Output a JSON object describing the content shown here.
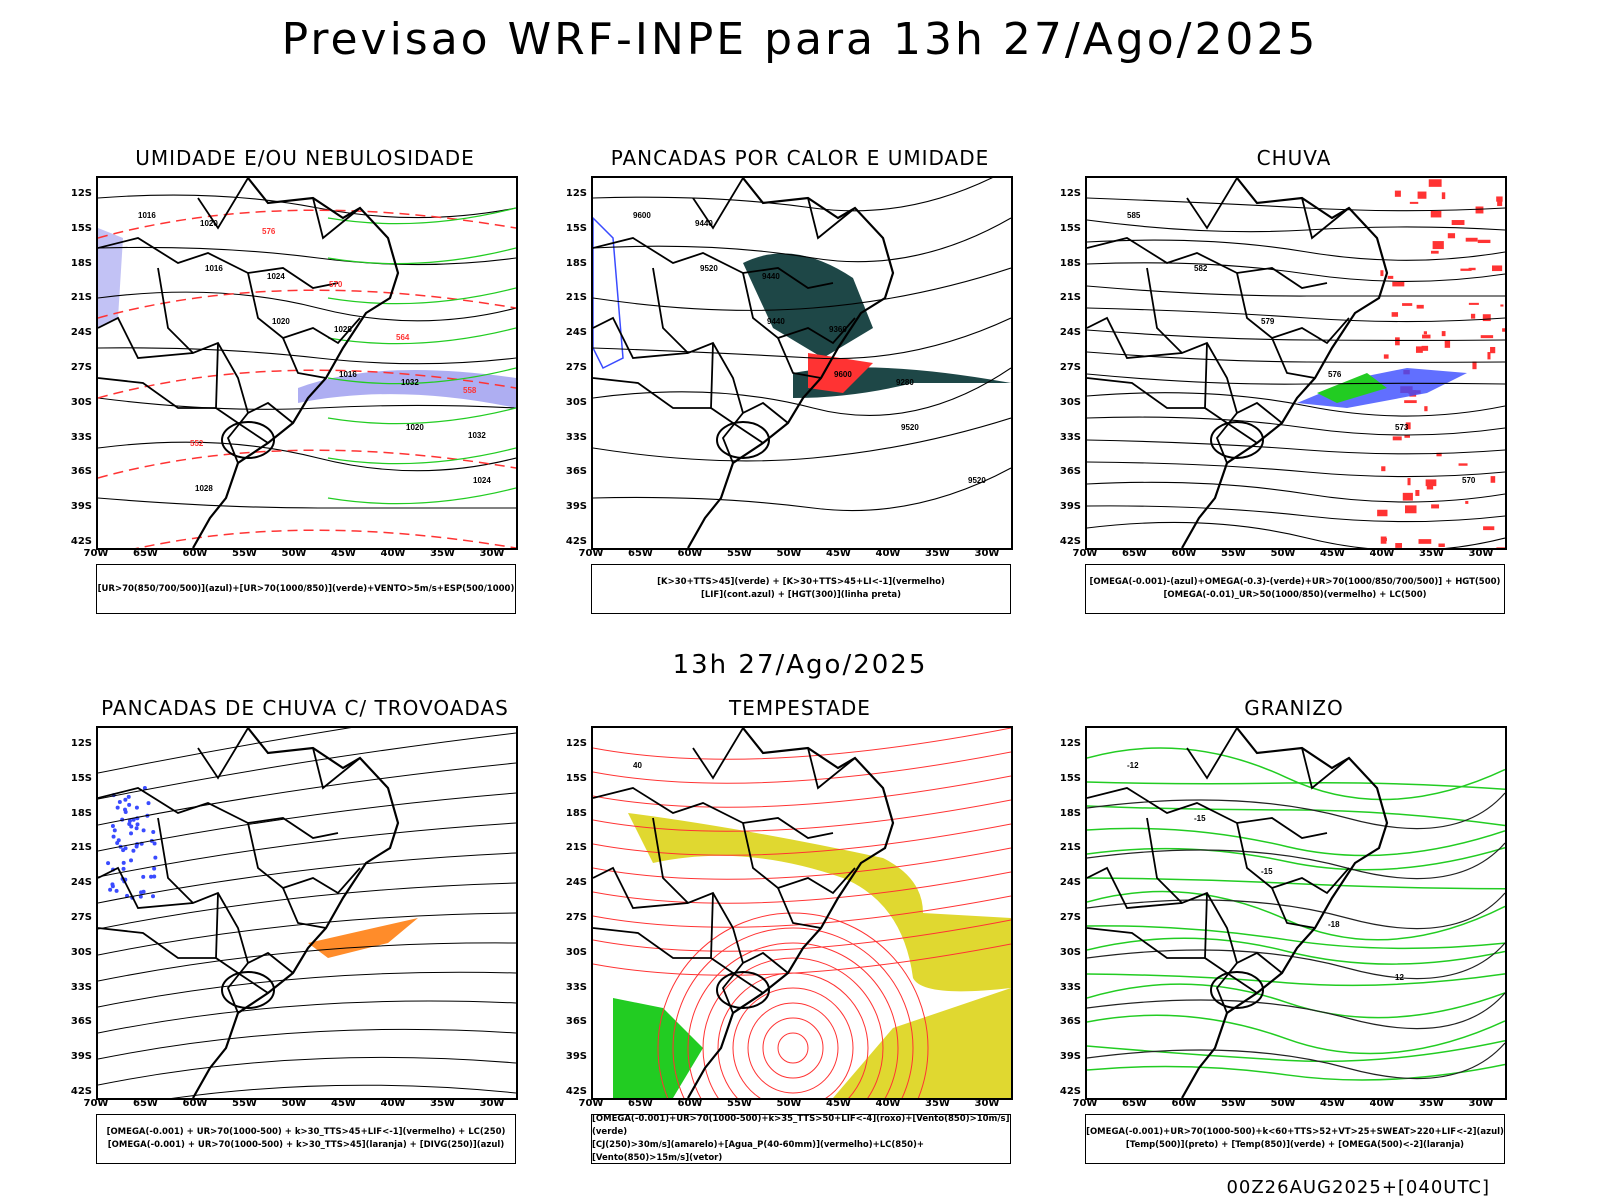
{
  "title": "Previsao WRF-INPE  para 13h 27/Ago/2025",
  "subtitle": "13h 27/Ago/2025",
  "footer": "00Z26AUG2025+[040UTC]",
  "lat_ticks": [
    "12S",
    "15S",
    "18S",
    "21S",
    "24S",
    "27S",
    "30S",
    "33S",
    "36S",
    "39S",
    "42S"
  ],
  "lon_ticks": [
    "70W",
    "65W",
    "60W",
    "55W",
    "50W",
    "45W",
    "40W",
    "35W",
    "30W"
  ],
  "colors": {
    "blue": "#3a4bff",
    "green": "#22cc22",
    "red": "#ff3333",
    "orange": "#ff8c2a",
    "yellow": "#e0d830",
    "teal": "#1e4747",
    "lavender": "#9a9aef"
  },
  "panels": [
    {
      "title": "UMIDADE E/OU NEBULOSIDADE",
      "legend": [
        "[UR>70(850/700/500)](azul)+[UR>70(1000/850)](verde)+VENTO>5m/s+ESP(500/1000)"
      ],
      "contour_labels": [
        "1016",
        "1016",
        "1020",
        "1016",
        "1020",
        "1024",
        "1020",
        "1024",
        "1028",
        "1032",
        "1032",
        "1028",
        "576",
        "570",
        "564",
        "558",
        "552"
      ]
    },
    {
      "title": "PANCADAS POR CALOR E UMIDADE",
      "legend": [
        "[K>30+TTS>45](verde) + [K>30+TTS>45+LI<-1](vermelho)",
        "[LIF](cont.azul) + [HGT(300)](linha preta)"
      ],
      "contour_labels": [
        "9600",
        "9520",
        "9440",
        "9600",
        "9520",
        "9520",
        "9440",
        "9440",
        "9360",
        "9280"
      ]
    },
    {
      "title": "CHUVA",
      "legend": [
        "[OMEGA(-0.001)-(azul)+OMEGA(-0.3)-(verde)+UR>70(1000/850/700/500)] + HGT(500)",
        "[OMEGA(-0.01)_UR>50(1000/850)(vermelho) + LC(500)"
      ],
      "contour_labels": [
        "585",
        "582",
        "579",
        "576",
        "573",
        "570"
      ]
    },
    {
      "title": "PANCADAS DE CHUVA C/ TROVOADAS",
      "legend": [
        "[OMEGA(-0.001) + UR>70(1000-500) + k>30_TTS>45+LIF<-1](vermelho) + LC(250)",
        "[OMEGA(-0.001) + UR>70(1000-500) + k>30_TTS>45](laranja) + [DIVG(250)](azul)"
      ],
      "contour_labels": []
    },
    {
      "title": "TEMPESTADE",
      "legend": [
        "[OMEGA(-0.001)+UR>70(1000-500)+k>35_TTS>50+LIF<-4](roxo)+[Vento(850)>10m/s](verde)",
        "[CJ(250)>30m/s](amarelo)+[Agua_P(40-60mm)](vermelho)+LC(850)+[Vento(850)>15m/s](vetor)"
      ],
      "contour_labels": [
        "40"
      ]
    },
    {
      "title": "GRANIZO",
      "legend": [
        "[OMEGA(-0.001)+UR>70(1000-500)+k<60+TTS>52+VT>25+SWEAT>220+LIF<-2](azul)",
        "[Temp(500)](preto) + [Temp(850)](verde) + [OMEGA(500)<-2](laranja)"
      ],
      "contour_labels": [
        "-12",
        "-15",
        "-15",
        "-18",
        "12"
      ]
    }
  ]
}
